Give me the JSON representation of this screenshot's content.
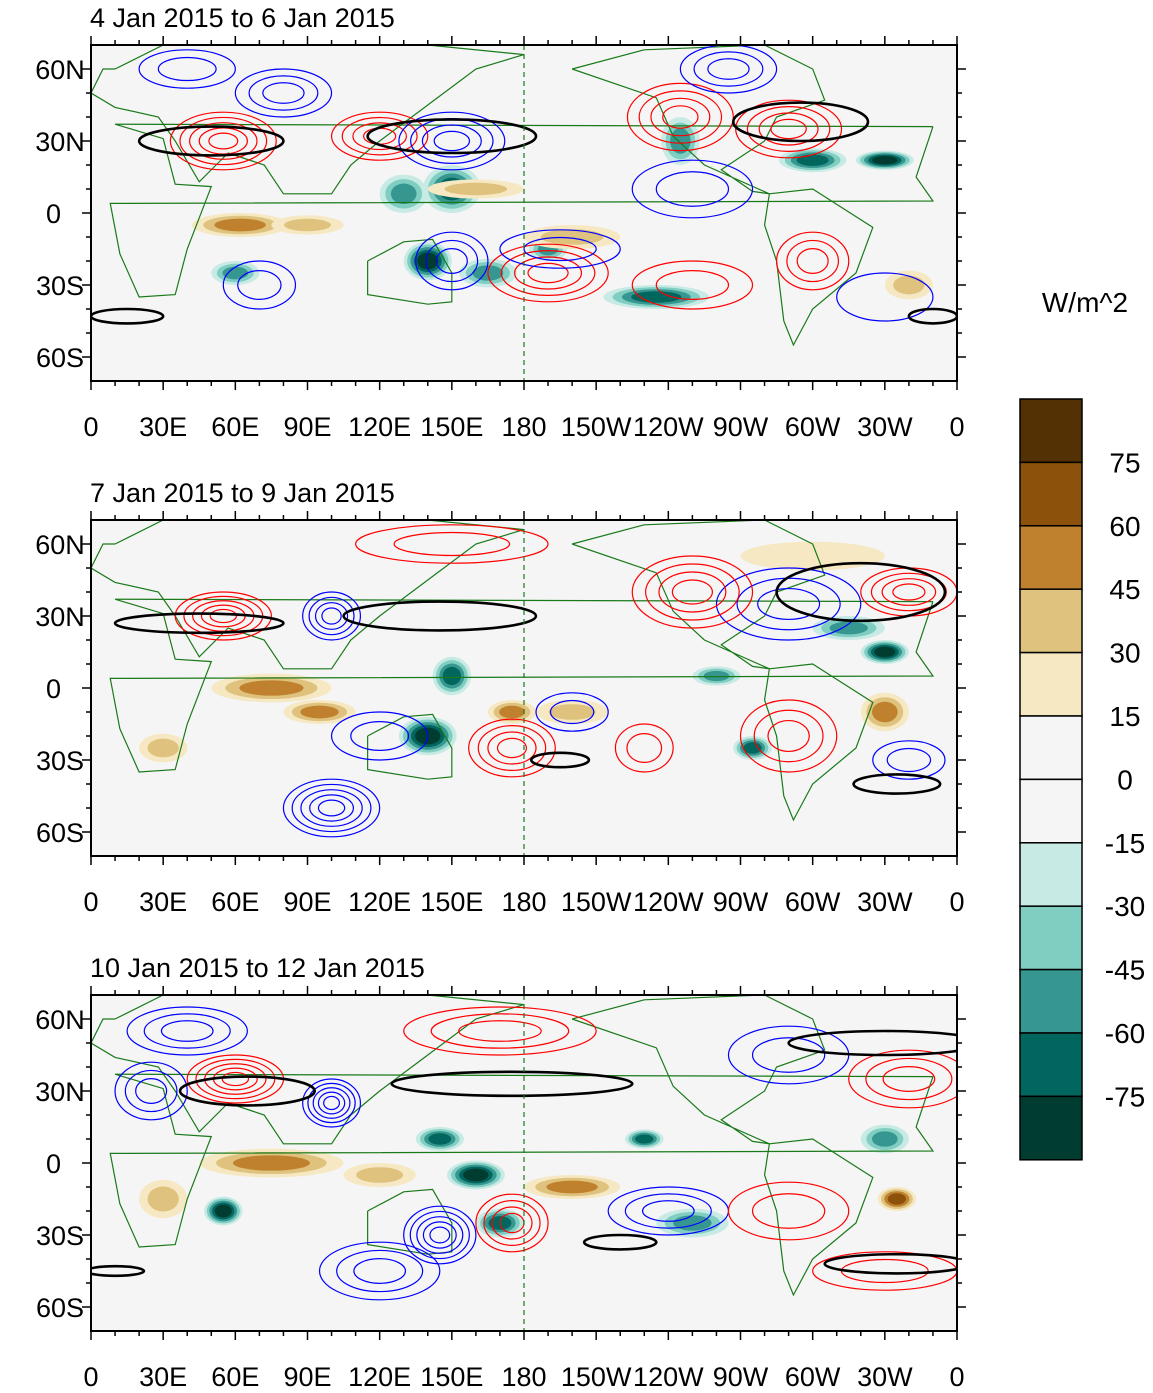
{
  "chart_data": {
    "type": "heatmap",
    "units_label": "W/m^2",
    "colorbar": {
      "levels": [
        "75",
        "60",
        "45",
        "30",
        "15",
        "0",
        "-15",
        "-30",
        "-45",
        "-60",
        "-75"
      ],
      "colors": [
        "#543005",
        "#8c510a",
        "#bf812d",
        "#dfc27d",
        "#f6e8c3",
        "#f5f5f5",
        "#f5f5f5",
        "#c7eae5",
        "#80cdc1",
        "#35978f",
        "#01665e",
        "#003c30"
      ]
    },
    "lon_ticks": [
      "0",
      "30E",
      "60E",
      "90E",
      "120E",
      "150E",
      "180",
      "150W",
      "120W",
      "90W",
      "60W",
      "30W",
      "0"
    ],
    "lat_ticks": [
      "60N",
      "30N",
      "0",
      "30S",
      "60S"
    ],
    "lon_range": [
      0,
      360
    ],
    "lat_range": [
      -70,
      70
    ],
    "contour_colors": {
      "positive": "#ff0000",
      "negative": "#0000ff",
      "jet": "#000000",
      "coast": "#1a7a1a"
    },
    "panels": [
      {
        "title": "4 Jan 2015 to 6 Jan 2015",
        "shading": [
          [
            62,
            -5,
            20,
            5,
            40
          ],
          [
            90,
            -5,
            15,
            4,
            30
          ],
          [
            130,
            8,
            10,
            8,
            -45
          ],
          [
            150,
            10,
            12,
            10,
            -60
          ],
          [
            140,
            -20,
            10,
            8,
            -75
          ],
          [
            165,
            -25,
            12,
            6,
            -45
          ],
          [
            235,
            -35,
            22,
            5,
            -60
          ],
          [
            190,
            -15,
            8,
            5,
            -45
          ],
          [
            300,
            22,
            14,
            5,
            -60
          ],
          [
            330,
            22,
            12,
            4,
            -75
          ],
          [
            245,
            30,
            8,
            10,
            -45
          ],
          [
            200,
            -10,
            20,
            5,
            20
          ],
          [
            340,
            -30,
            10,
            6,
            20
          ],
          [
            160,
            10,
            20,
            4,
            20
          ],
          [
            60,
            -25,
            10,
            5,
            -45
          ]
        ],
        "contours": [
          [
            55,
            30,
            22,
            12,
            1,
            5
          ],
          [
            120,
            32,
            20,
            10,
            1,
            4
          ],
          [
            150,
            30,
            22,
            12,
            -1,
            4
          ],
          [
            80,
            50,
            20,
            10,
            -1,
            3
          ],
          [
            40,
            60,
            20,
            8,
            -1,
            2
          ],
          [
            245,
            40,
            22,
            14,
            1,
            4
          ],
          [
            290,
            35,
            22,
            12,
            1,
            4
          ],
          [
            265,
            60,
            20,
            10,
            -1,
            3
          ],
          [
            190,
            -25,
            25,
            12,
            1,
            4
          ],
          [
            300,
            -20,
            15,
            12,
            1,
            3
          ],
          [
            250,
            -30,
            25,
            10,
            1,
            2
          ],
          [
            150,
            -20,
            15,
            12,
            -1,
            3
          ],
          [
            70,
            -30,
            15,
            10,
            -1,
            2
          ],
          [
            195,
            -15,
            25,
            8,
            -1,
            2
          ],
          [
            250,
            10,
            25,
            12,
            -1,
            2
          ],
          [
            330,
            -35,
            20,
            10,
            -1,
            1
          ]
        ],
        "jets": [
          [
            50,
            30,
            30,
            6
          ],
          [
            150,
            32,
            35,
            7
          ],
          [
            295,
            38,
            28,
            8
          ],
          [
            15,
            -43,
            15,
            3
          ],
          [
            350,
            -43,
            10,
            3
          ]
        ]
      },
      {
        "title": "7 Jan 2015 to 9 Jan 2015",
        "shading": [
          [
            75,
            0,
            25,
            6,
            45
          ],
          [
            95,
            -10,
            15,
            5,
            40
          ],
          [
            150,
            5,
            8,
            8,
            -60
          ],
          [
            140,
            -20,
            12,
            8,
            -75
          ],
          [
            175,
            -10,
            10,
            5,
            45
          ],
          [
            200,
            -10,
            15,
            5,
            30
          ],
          [
            275,
            -25,
            8,
            5,
            -60
          ],
          [
            315,
            25,
            15,
            5,
            -45
          ],
          [
            330,
            15,
            10,
            5,
            -75
          ],
          [
            330,
            -10,
            10,
            8,
            45
          ],
          [
            260,
            5,
            10,
            4,
            -45
          ],
          [
            30,
            -25,
            10,
            6,
            20
          ],
          [
            300,
            55,
            30,
            6,
            15
          ]
        ],
        "contours": [
          [
            55,
            30,
            20,
            10,
            1,
            5
          ],
          [
            100,
            30,
            12,
            10,
            -1,
            4
          ],
          [
            100,
            -50,
            20,
            12,
            -1,
            5
          ],
          [
            175,
            -25,
            18,
            12,
            1,
            4
          ],
          [
            230,
            -25,
            12,
            10,
            1,
            2
          ],
          [
            290,
            -20,
            20,
            15,
            1,
            3
          ],
          [
            290,
            35,
            30,
            15,
            -1,
            3
          ],
          [
            340,
            40,
            20,
            10,
            1,
            4
          ],
          [
            250,
            40,
            25,
            15,
            1,
            4
          ],
          [
            150,
            60,
            40,
            8,
            1,
            2
          ],
          [
            200,
            -10,
            15,
            8,
            -1,
            2
          ],
          [
            120,
            -20,
            20,
            10,
            -1,
            2
          ],
          [
            340,
            -30,
            15,
            8,
            -1,
            2
          ]
        ],
        "jets": [
          [
            45,
            27,
            35,
            4
          ],
          [
            145,
            30,
            40,
            6
          ],
          [
            320,
            40,
            35,
            12
          ],
          [
            195,
            -30,
            12,
            3
          ],
          [
            335,
            -40,
            18,
            4
          ]
        ]
      },
      {
        "title": "10 Jan 2015 to 12 Jan 2015",
        "shading": [
          [
            75,
            0,
            30,
            6,
            45
          ],
          [
            55,
            -20,
            8,
            6,
            -75
          ],
          [
            145,
            10,
            10,
            5,
            -60
          ],
          [
            160,
            -5,
            12,
            6,
            -75
          ],
          [
            170,
            -25,
            10,
            6,
            -60
          ],
          [
            200,
            -10,
            20,
            5,
            45
          ],
          [
            250,
            -25,
            15,
            6,
            -45
          ],
          [
            335,
            -15,
            8,
            5,
            60
          ],
          [
            230,
            10,
            8,
            4,
            -60
          ],
          [
            330,
            10,
            10,
            6,
            -45
          ],
          [
            30,
            -15,
            10,
            8,
            30
          ],
          [
            120,
            -5,
            15,
            5,
            30
          ]
        ],
        "contours": [
          [
            60,
            35,
            20,
            10,
            1,
            5
          ],
          [
            100,
            25,
            12,
            10,
            -1,
            5
          ],
          [
            145,
            -30,
            15,
            12,
            -1,
            5
          ],
          [
            120,
            -45,
            25,
            12,
            -1,
            3
          ],
          [
            175,
            -25,
            15,
            12,
            1,
            4
          ],
          [
            240,
            -20,
            25,
            10,
            -1,
            3
          ],
          [
            290,
            -20,
            25,
            12,
            1,
            2
          ],
          [
            340,
            35,
            25,
            12,
            1,
            3
          ],
          [
            290,
            45,
            25,
            12,
            -1,
            2
          ],
          [
            170,
            55,
            40,
            10,
            1,
            3
          ],
          [
            40,
            55,
            25,
            10,
            -1,
            3
          ],
          [
            25,
            30,
            15,
            12,
            -1,
            3
          ],
          [
            330,
            -45,
            30,
            8,
            1,
            2
          ]
        ],
        "jets": [
          [
            65,
            30,
            28,
            6
          ],
          [
            175,
            33,
            50,
            5
          ],
          [
            330,
            50,
            40,
            5
          ],
          [
            220,
            -33,
            15,
            3
          ],
          [
            335,
            -42,
            30,
            4
          ],
          [
            10,
            -45,
            12,
            2
          ]
        ]
      }
    ]
  }
}
